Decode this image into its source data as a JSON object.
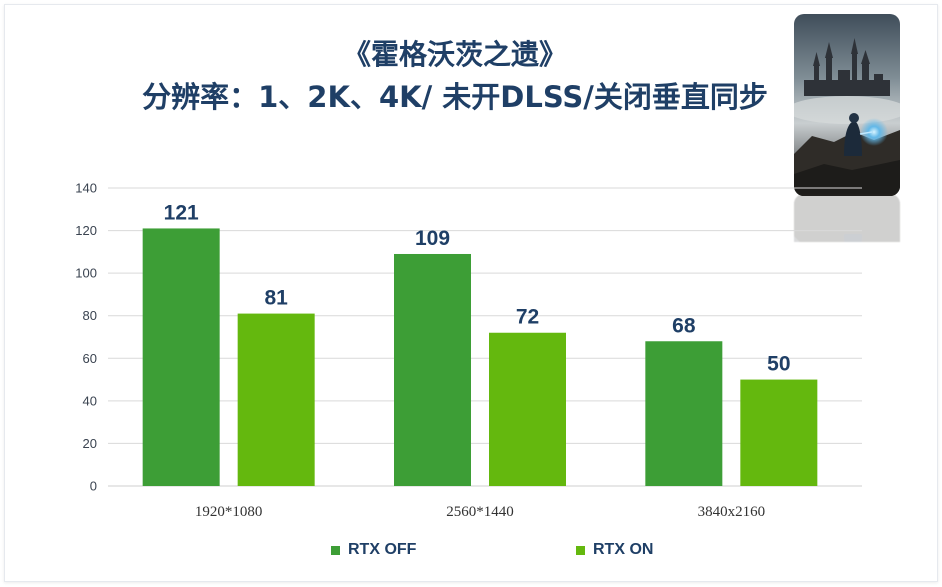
{
  "title_line1": "《霍格沃茨之遗》",
  "title_line2": "分辨率：1、2K、4K/ 未开DLSS/关闭垂直同步",
  "thumbnail": {
    "icon": "game-cover-image"
  },
  "colors": {
    "rtx_off": "#3d9e36",
    "rtx_on": "#64b80e",
    "title": "#1f3f66",
    "grid": "#d9d9d9"
  },
  "chart_data": {
    "type": "bar",
    "categories": [
      "1920*1080",
      "2560*1440",
      "3840x2160"
    ],
    "series": [
      {
        "name": "RTX OFF",
        "values": [
          121,
          109,
          68
        ],
        "color": "#3d9e36"
      },
      {
        "name": "RTX ON",
        "values": [
          81,
          72,
          50
        ],
        "color": "#64b80e"
      }
    ],
    "yticks": [
      0,
      20,
      40,
      60,
      80,
      100,
      120,
      140
    ],
    "ylim": [
      0,
      140
    ],
    "grid": true,
    "legend_position": "bottom"
  }
}
